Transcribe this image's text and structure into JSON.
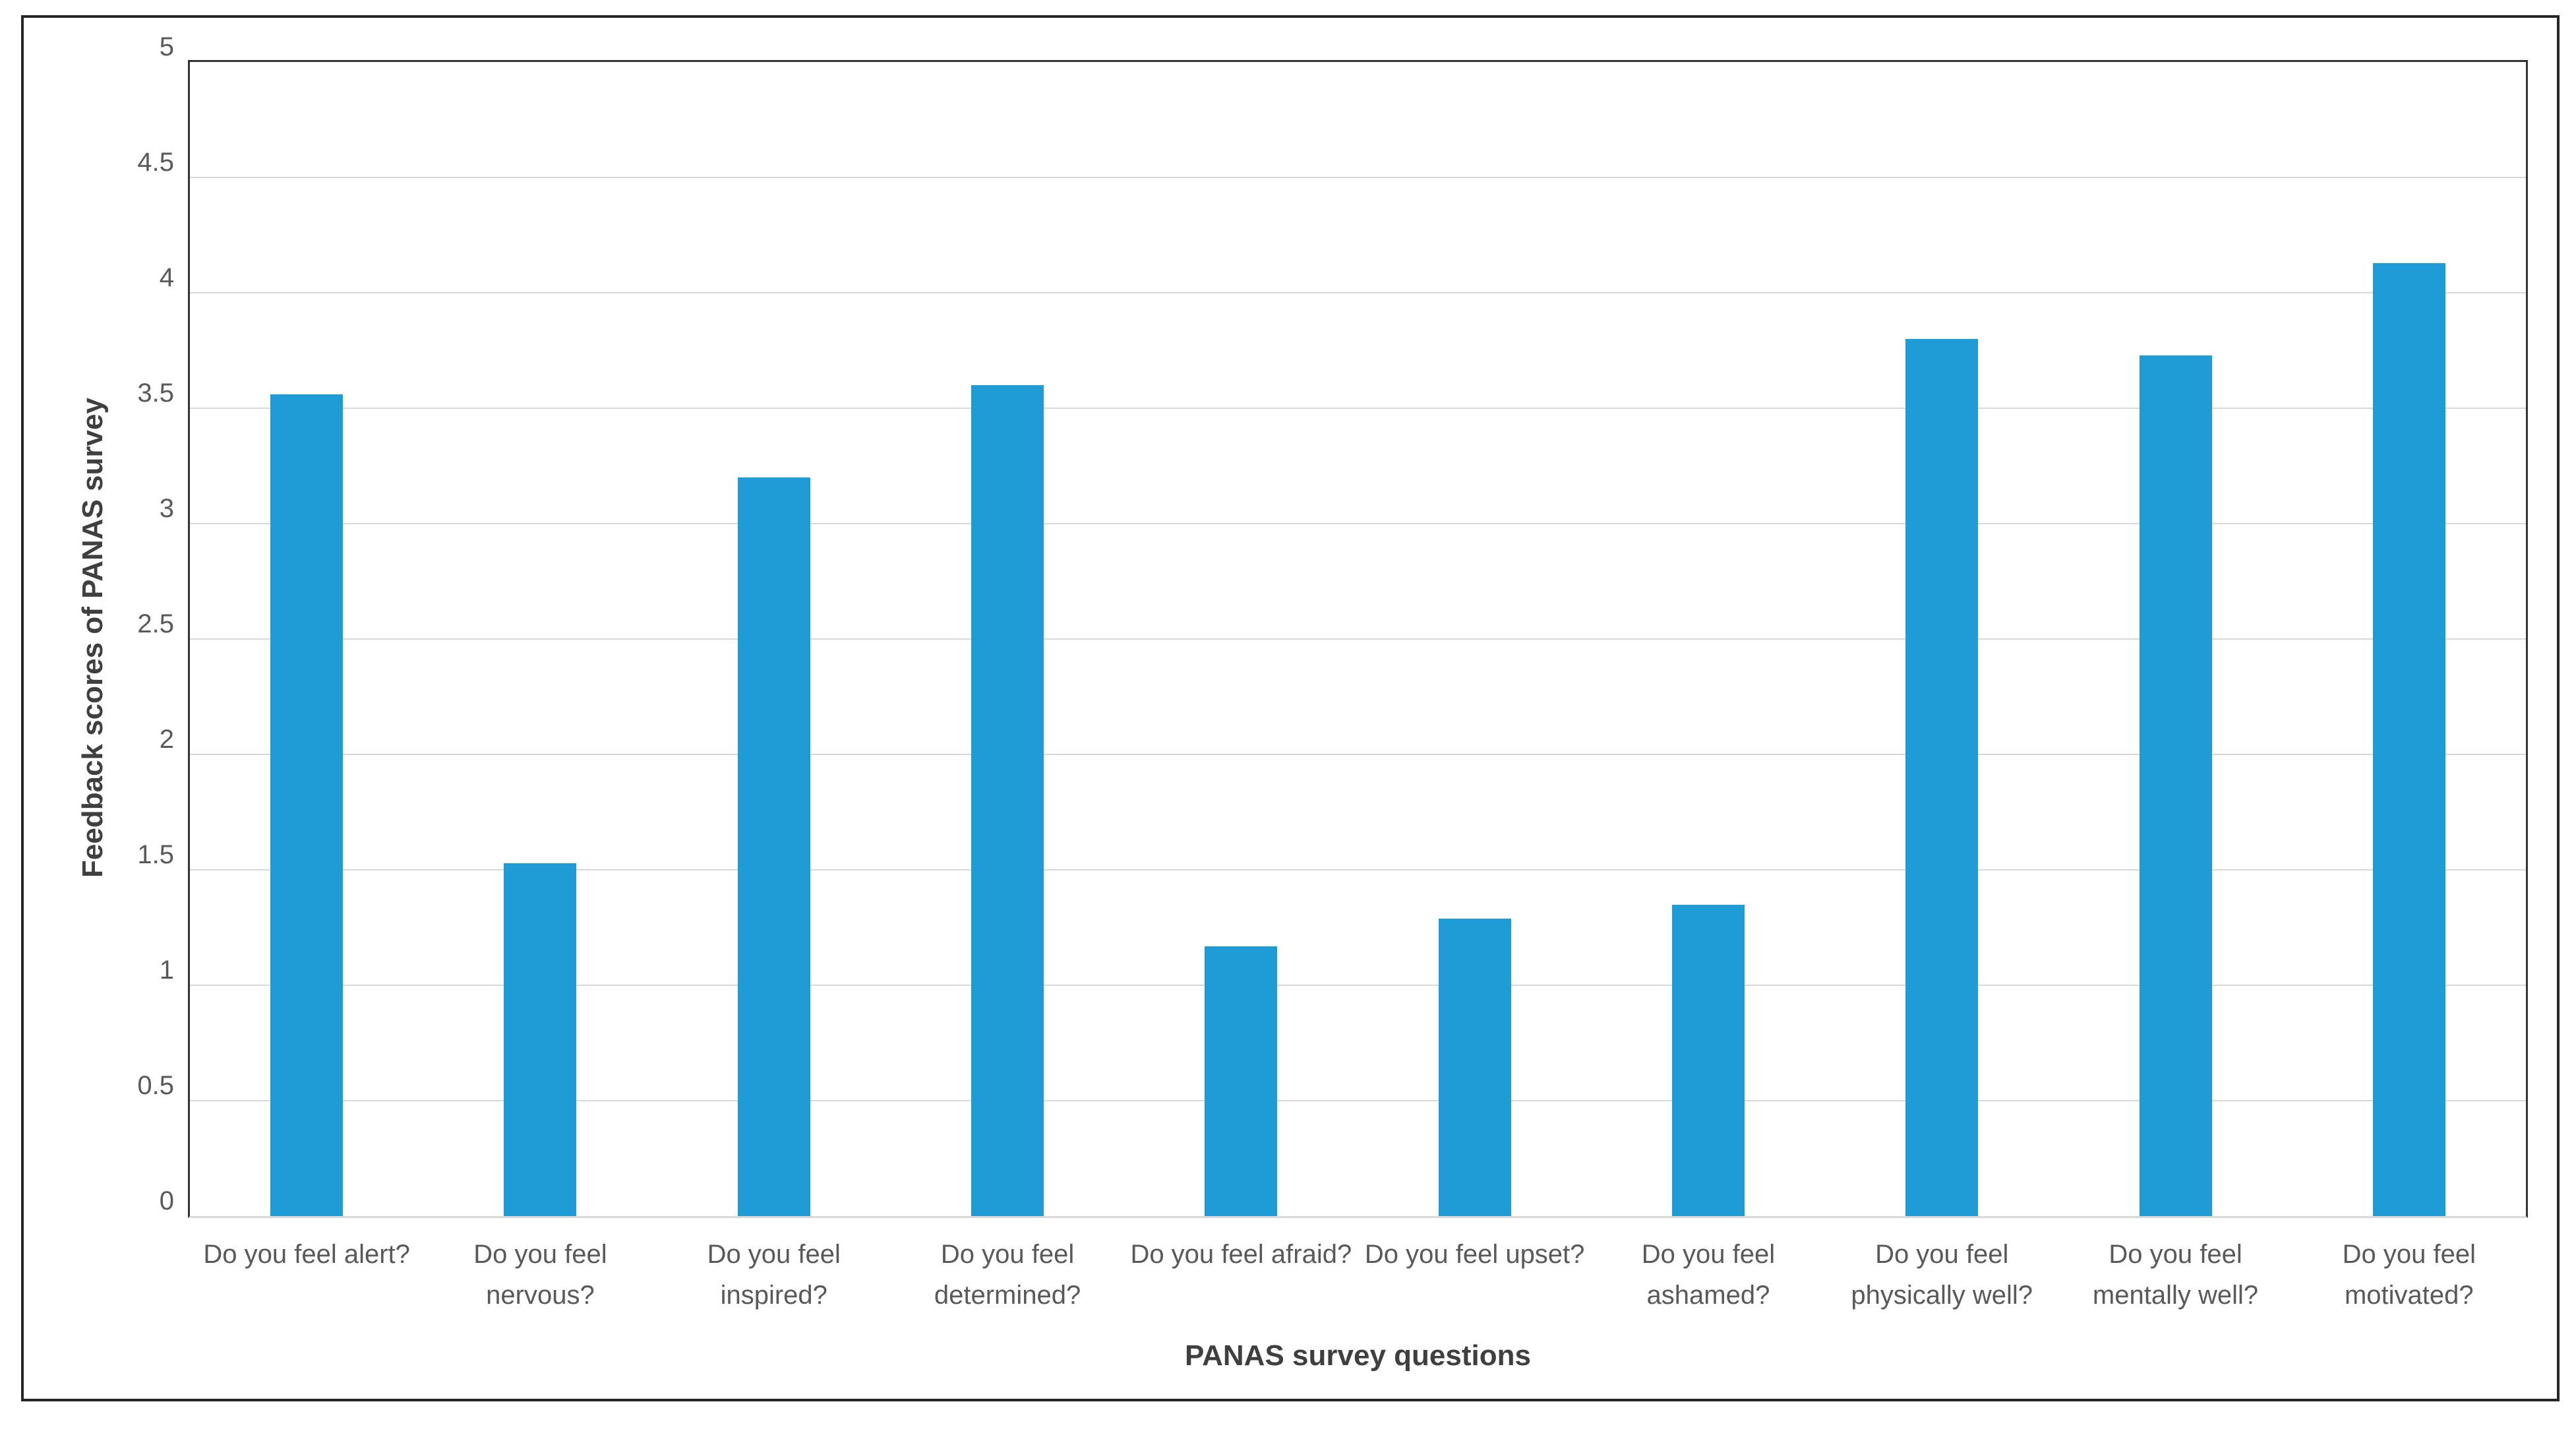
{
  "page": {
    "background": "#ffffff",
    "frame_border_color": "#262626"
  },
  "chart_data": {
    "type": "bar",
    "title": "",
    "categories": [
      "Do you feel alert?",
      "Do you feel nervous?",
      "Do you feel inspired?",
      "Do you feel determined?",
      "Do you feel afraid?",
      "Do you feel upset?",
      "Do you feel ashamed?",
      "Do you feel physically well?",
      "Do you feel mentally well?",
      "Do you feel motivated?"
    ],
    "values": [
      3.56,
      1.53,
      3.2,
      3.6,
      1.17,
      1.29,
      1.35,
      3.8,
      3.73,
      4.13
    ],
    "xlabel": "PANAS survey questions",
    "ylabel": "Feedback scores of PANAS survey",
    "ylim": [
      0,
      5
    ],
    "ytick_step": 0.5,
    "yticks": [
      "0",
      "0.5",
      "1",
      "1.5",
      "2",
      "2.5",
      "3",
      "3.5",
      "4",
      "4.5",
      "5"
    ],
    "grid": "horizontal-major",
    "legend": "none",
    "bar_color": "#1F9CD8",
    "gridline_color": "#D9D9D9",
    "axis_line_color": "#D9D9D9",
    "plot_border_color": "#333333",
    "tick_label_color": "#595959",
    "axis_title_color": "#3F3F3F"
  }
}
